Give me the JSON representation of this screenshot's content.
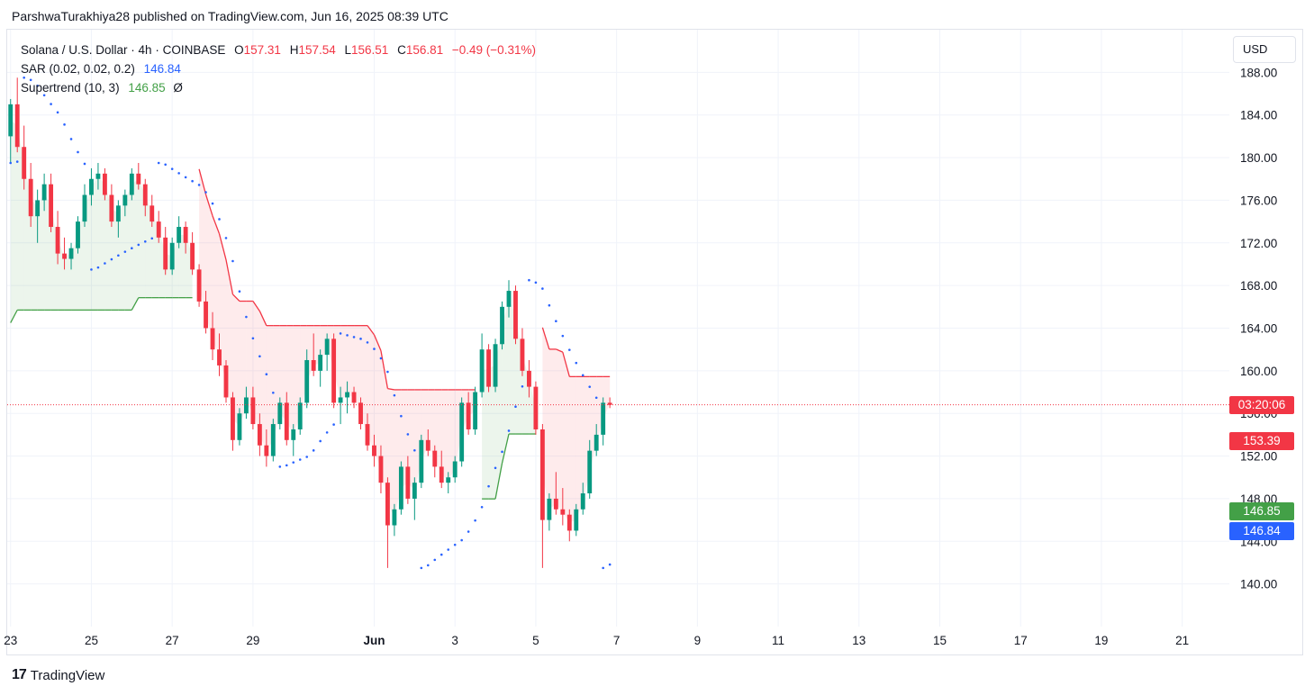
{
  "header": {
    "publisher_line": "ParshwaTurakhiya28 published on TradingView.com, Jun 16, 2025 08:39 UTC"
  },
  "legend": {
    "symbol": "Solana / U.S. Dollar · 4h · COINBASE",
    "open_label": "O",
    "open": "157.31",
    "high_label": "H",
    "high": "157.54",
    "low_label": "L",
    "low": "156.51",
    "close_label": "C",
    "close": "156.81",
    "change": "−0.49 (−0.31%)",
    "sar_label": "SAR (0.02, 0.02, 0.2)",
    "sar_value": "146.84",
    "supertrend_label": "Supertrend (10, 3)",
    "supertrend_value": "146.85",
    "supertrend_icon": "Ø"
  },
  "currency_button": "USD",
  "badges": {
    "countdown": "03:20:06",
    "supertrend_down": "153.39",
    "supertrend_up": "146.85",
    "sar": "146.84"
  },
  "footer": {
    "brand": "TradingView",
    "logo_icon": "tradingview-logo-icon"
  },
  "colors": {
    "up": "#089981",
    "down": "#f23645",
    "sar": "#2962ff",
    "supertrend_up": "#43a047",
    "supertrend_down": "#f23645"
  },
  "chart_data": {
    "type": "candlestick",
    "title": "Solana / U.S. Dollar · 4h · COINBASE",
    "ylim": [
      136,
      192
    ],
    "yticks": [
      140,
      144,
      148,
      152,
      156,
      160,
      164,
      168,
      172,
      176,
      180,
      184,
      188
    ],
    "x_date_range": [
      "2025-05-22T22:00",
      "2025-06-22T04:00"
    ],
    "x_ticks": [
      {
        "label": "23",
        "date": "2025-05-23"
      },
      {
        "label": "25",
        "date": "2025-05-25"
      },
      {
        "label": "27",
        "date": "2025-05-27"
      },
      {
        "label": "29",
        "date": "2025-05-29"
      },
      {
        "label": "Jun",
        "date": "2025-06-01"
      },
      {
        "label": "3",
        "date": "2025-06-03"
      },
      {
        "label": "5",
        "date": "2025-06-05"
      },
      {
        "label": "7",
        "date": "2025-06-07"
      },
      {
        "label": "9",
        "date": "2025-06-09"
      },
      {
        "label": "11",
        "date": "2025-06-11"
      },
      {
        "label": "13",
        "date": "2025-06-13"
      },
      {
        "label": "15",
        "date": "2025-06-15"
      },
      {
        "label": "17",
        "date": "2025-06-17"
      },
      {
        "label": "19",
        "date": "2025-06-19"
      },
      {
        "label": "21",
        "date": "2025-06-21"
      }
    ],
    "last_price": 156.81,
    "candles_start": "2025-05-23T00:00",
    "candle_interval_hours": 4,
    "candles_ohlc": [
      [
        182.0,
        185.5,
        179.5,
        185.0
      ],
      [
        185.0,
        187.5,
        180.5,
        181.0
      ],
      [
        181.0,
        183.0,
        177.0,
        178.0
      ],
      [
        178.0,
        179.5,
        173.5,
        174.5
      ],
      [
        174.5,
        177.0,
        172.0,
        176.0
      ],
      [
        176.0,
        178.5,
        175.0,
        177.5
      ],
      [
        177.5,
        178.5,
        173.0,
        173.5
      ],
      [
        173.5,
        175.0,
        170.0,
        171.0
      ],
      [
        171.0,
        172.5,
        169.5,
        170.5
      ],
      [
        170.5,
        172.0,
        169.5,
        171.5
      ],
      [
        171.5,
        174.5,
        171.0,
        174.0
      ],
      [
        174.0,
        177.5,
        173.5,
        176.5
      ],
      [
        176.5,
        179.0,
        175.5,
        178.0
      ],
      [
        178.0,
        179.5,
        177.0,
        178.5
      ],
      [
        178.5,
        179.0,
        176.0,
        176.5
      ],
      [
        176.5,
        177.5,
        173.5,
        174.0
      ],
      [
        174.0,
        176.0,
        172.5,
        175.5
      ],
      [
        175.5,
        177.0,
        174.5,
        176.5
      ],
      [
        176.5,
        179.0,
        176.0,
        178.5
      ],
      [
        178.5,
        179.5,
        177.0,
        177.5
      ],
      [
        177.5,
        178.0,
        174.5,
        175.5
      ],
      [
        175.5,
        176.5,
        173.5,
        174.0
      ],
      [
        174.0,
        175.0,
        172.0,
        172.5
      ],
      [
        172.5,
        173.5,
        169.0,
        169.5
      ],
      [
        169.5,
        172.5,
        169.0,
        172.0
      ],
      [
        172.0,
        174.5,
        171.5,
        173.5
      ],
      [
        173.5,
        174.0,
        171.0,
        172.0
      ],
      [
        172.0,
        173.0,
        169.0,
        169.5
      ],
      [
        169.5,
        170.0,
        166.0,
        166.5
      ],
      [
        166.5,
        167.5,
        163.5,
        164.0
      ],
      [
        164.0,
        165.5,
        161.0,
        162.0
      ],
      [
        162.0,
        163.5,
        159.5,
        160.5
      ],
      [
        160.5,
        161.0,
        157.0,
        157.5
      ],
      [
        157.5,
        158.0,
        152.5,
        153.5
      ],
      [
        153.5,
        156.5,
        153.0,
        156.0
      ],
      [
        156.0,
        158.5,
        155.5,
        157.5
      ],
      [
        157.5,
        158.5,
        154.5,
        155.0
      ],
      [
        155.0,
        156.0,
        152.0,
        153.0
      ],
      [
        153.0,
        154.5,
        151.0,
        152.0
      ],
      [
        152.0,
        155.5,
        151.5,
        155.0
      ],
      [
        155.0,
        157.5,
        154.5,
        157.0
      ],
      [
        157.0,
        158.0,
        153.0,
        153.5
      ],
      [
        153.5,
        155.0,
        152.0,
        154.5
      ],
      [
        154.5,
        157.5,
        154.0,
        157.0
      ],
      [
        157.0,
        162.0,
        156.5,
        161.0
      ],
      [
        161.0,
        163.5,
        159.5,
        160.0
      ],
      [
        160.0,
        162.0,
        158.5,
        161.5
      ],
      [
        161.5,
        163.5,
        160.0,
        163.0
      ],
      [
        163.0,
        163.5,
        156.5,
        157.0
      ],
      [
        157.0,
        158.5,
        155.0,
        157.5
      ],
      [
        157.5,
        159.0,
        156.0,
        158.0
      ],
      [
        158.0,
        158.5,
        156.5,
        157.0
      ],
      [
        157.0,
        157.5,
        154.5,
        155.0
      ],
      [
        155.0,
        156.0,
        152.5,
        153.0
      ],
      [
        153.0,
        154.0,
        151.0,
        152.0
      ],
      [
        152.0,
        153.0,
        148.5,
        149.5
      ],
      [
        149.5,
        150.0,
        141.5,
        145.5
      ],
      [
        145.5,
        147.5,
        144.5,
        147.0
      ],
      [
        147.0,
        151.5,
        146.5,
        151.0
      ],
      [
        151.0,
        152.0,
        147.5,
        148.0
      ],
      [
        148.0,
        150.0,
        146.0,
        149.5
      ],
      [
        149.5,
        154.0,
        149.0,
        153.5
      ],
      [
        153.5,
        154.5,
        152.0,
        152.5
      ],
      [
        152.5,
        153.0,
        150.0,
        151.0
      ],
      [
        151.0,
        152.5,
        149.0,
        149.5
      ],
      [
        149.5,
        150.5,
        148.5,
        150.0
      ],
      [
        150.0,
        152.0,
        149.5,
        151.5
      ],
      [
        151.5,
        157.5,
        151.0,
        157.0
      ],
      [
        157.0,
        158.0,
        154.0,
        154.5
      ],
      [
        154.5,
        158.5,
        154.0,
        158.0
      ],
      [
        158.0,
        163.5,
        157.5,
        162.0
      ],
      [
        162.0,
        162.5,
        158.0,
        158.5
      ],
      [
        158.5,
        163.0,
        158.0,
        162.5
      ],
      [
        162.5,
        166.5,
        162.0,
        166.0
      ],
      [
        166.0,
        168.5,
        165.0,
        167.5
      ],
      [
        167.5,
        168.0,
        162.5,
        163.0
      ],
      [
        163.0,
        164.0,
        159.5,
        160.0
      ],
      [
        160.0,
        161.0,
        157.5,
        158.5
      ],
      [
        158.5,
        159.0,
        154.0,
        154.5
      ],
      [
        154.5,
        155.0,
        141.5,
        146.0
      ],
      [
        146.0,
        148.5,
        145.0,
        148.0
      ],
      [
        148.0,
        150.5,
        146.5,
        147.0
      ],
      [
        147.0,
        149.0,
        145.5,
        146.5
      ],
      [
        146.5,
        147.0,
        144.0,
        145.0
      ],
      [
        145.0,
        147.5,
        144.5,
        147.0
      ],
      [
        147.0,
        149.5,
        146.5,
        148.5
      ],
      [
        148.5,
        153.5,
        148.0,
        152.5
      ],
      [
        152.5,
        155.0,
        152.0,
        154.0
      ],
      [
        154.0,
        157.5,
        153.0,
        157.0
      ],
      [
        157.0,
        157.5,
        156.5,
        156.8
      ]
    ],
    "series": [
      {
        "name": "SAR (0.02, 0.02, 0.2)",
        "last_value": 146.84
      },
      {
        "name": "Supertrend (10, 3)",
        "last_value": 146.85,
        "down_level": 153.39
      }
    ]
  }
}
